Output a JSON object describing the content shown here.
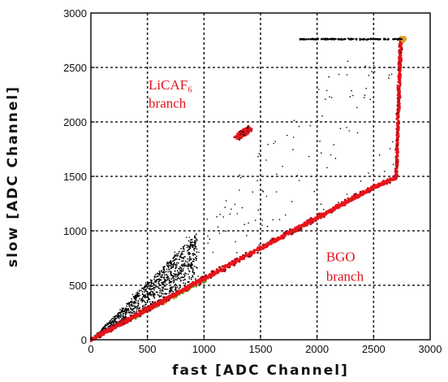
{
  "chart_data": {
    "type": "scatter",
    "title": "",
    "xlabel": "fast [ADC Channel]",
    "ylabel": "slow [ADC Channel]",
    "xlim": [
      0,
      3000
    ],
    "ylim": [
      0,
      3000
    ],
    "xticks": [
      "0",
      "500",
      "1000",
      "1500",
      "2000",
      "2500",
      "3000"
    ],
    "yticks": [
      "0",
      "500",
      "1000",
      "1500",
      "2000",
      "2500",
      "3000"
    ],
    "grid": true,
    "grid_style": "dashed",
    "colors": {
      "density_high": "#e8141c",
      "density_mid": "#9b0d10",
      "scatter": "#000000",
      "low_band_green": "#5cb83a",
      "low_band_blue": "#2a8fc8",
      "low_band_orange": "#e09b28"
    },
    "annotations": [
      {
        "text": "LiCAF₆",
        "x": 510,
        "y": 2300
      },
      {
        "text": "branch",
        "x": 510,
        "y": 2130
      },
      {
        "text": "BGO",
        "x": 2080,
        "y": 720
      },
      {
        "text": "branch",
        "x": 2080,
        "y": 540
      }
    ],
    "series": [
      {
        "component": "BGO branch (main line)",
        "points": [
          [
            0,
            0
          ],
          [
            500,
            280
          ],
          [
            1000,
            560
          ],
          [
            1500,
            840
          ],
          [
            2000,
            1120
          ],
          [
            2500,
            1400
          ],
          [
            2700,
            1490
          ]
        ]
      },
      {
        "component": "BGO branch (vertical)",
        "points": [
          [
            2700,
            1490
          ],
          [
            2710,
            1800
          ],
          [
            2720,
            2200
          ],
          [
            2730,
            2600
          ],
          [
            2760,
            2760
          ]
        ]
      },
      {
        "component": "LiCAF6 branch (cluster)",
        "points": [
          [
            1320,
            1870
          ],
          [
            1350,
            1900
          ],
          [
            1380,
            1940
          ],
          [
            1300,
            1830
          ],
          [
            1400,
            1960
          ]
        ]
      },
      {
        "component": "Low branch (wedge)",
        "points": [
          [
            100,
            90
          ],
          [
            300,
            280
          ],
          [
            500,
            480
          ],
          [
            700,
            650
          ],
          [
            900,
            900
          ]
        ]
      },
      {
        "component": "Saturation line",
        "points": [
          [
            1850,
            2760
          ],
          [
            2200,
            2760
          ],
          [
            2500,
            2760
          ],
          [
            2700,
            2760
          ]
        ]
      }
    ]
  }
}
